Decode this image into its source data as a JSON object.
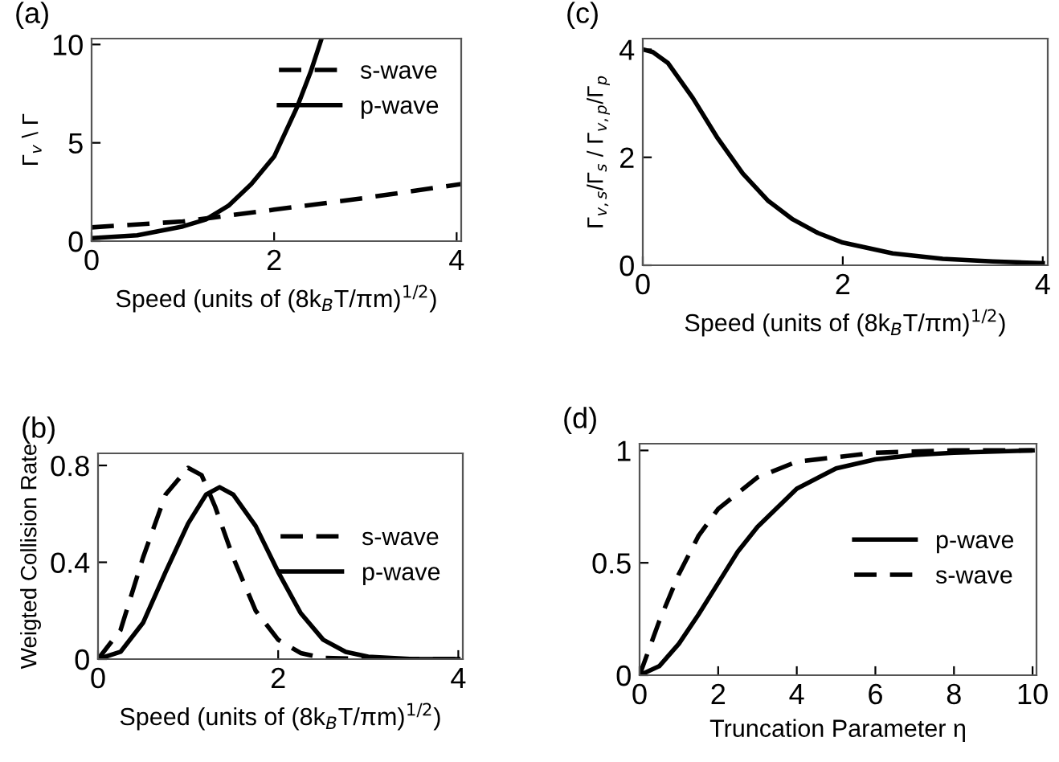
{
  "chart_data": [
    {
      "type": "line",
      "title": "(a)",
      "xlabel": "Speed (units of (8k$_{B}$T/πm)$^{1/2}$)",
      "ylabel": "Γ$_{v}$ \\ Γ",
      "xlim": [
        0,
        4.05
      ],
      "ylim": [
        0,
        10.3
      ],
      "xticks": [
        0,
        2,
        4
      ],
      "yticks": [
        0,
        5,
        10
      ],
      "grid": false,
      "legend": "top right",
      "series": [
        {
          "name": "s-wave",
          "color": "#000000",
          "line_style": "dashed",
          "x": [
            0,
            1,
            2,
            3,
            4.05
          ],
          "values": [
            0.7,
            1.0,
            1.6,
            2.2,
            2.9
          ]
        },
        {
          "name": "p-wave",
          "color": "#000000",
          "line_style": "solid",
          "x": [
            0,
            0.5,
            1,
            1.25,
            1.5,
            1.75,
            2,
            2.25,
            2.4,
            2.52
          ],
          "values": [
            0.15,
            0.3,
            0.75,
            1.1,
            1.8,
            2.9,
            4.3,
            6.8,
            8.6,
            10.3
          ]
        }
      ]
    },
    {
      "type": "line",
      "title": "(c)",
      "xlabel": "Speed (units of (8k$_{B}$T/πm)$^{1/2}$)",
      "ylabel": "Γ$_{v,s}$/Γ$_{s}$ / Γ$_{v,p}$/Γ$_{p}$",
      "xlim": [
        0,
        4.05
      ],
      "ylim": [
        0,
        4.2
      ],
      "xticks": [
        0,
        2,
        4
      ],
      "yticks": [
        0,
        2,
        4
      ],
      "grid": false,
      "legend": false,
      "series": [
        {
          "color": "#000000",
          "line_style": "solid",
          "x": [
            0,
            0.1,
            0.25,
            0.5,
            0.75,
            1,
            1.25,
            1.5,
            1.75,
            2,
            2.5,
            3,
            3.5,
            4
          ],
          "values": [
            4.0,
            3.95,
            3.75,
            3.1,
            2.35,
            1.7,
            1.2,
            0.85,
            0.6,
            0.42,
            0.22,
            0.12,
            0.07,
            0.04
          ]
        }
      ]
    },
    {
      "type": "line",
      "title": "(b)",
      "xlabel": "Speed (units of (8k$_{B}$T/πm)$^{1/2}$)",
      "ylabel": "Weigted Collision Rate",
      "xlim": [
        0,
        4.05
      ],
      "ylim": [
        0,
        0.85
      ],
      "xticks": [
        0,
        2,
        4
      ],
      "yticks": [
        0,
        0.4,
        0.8
      ],
      "grid": false,
      "legend": "right",
      "series": [
        {
          "name": "s-wave",
          "color": "#000000",
          "line_style": "dashed",
          "x": [
            0,
            0.25,
            0.5,
            0.75,
            1.0,
            1.15,
            1.3,
            1.5,
            1.75,
            2,
            2.25,
            2.5,
            3,
            4
          ],
          "values": [
            0,
            0.12,
            0.42,
            0.68,
            0.79,
            0.76,
            0.63,
            0.42,
            0.2,
            0.08,
            0.025,
            0.005,
            0,
            0
          ]
        },
        {
          "name": "p-wave",
          "color": "#000000",
          "line_style": "solid",
          "x": [
            0,
            0.25,
            0.5,
            0.75,
            1,
            1.2,
            1.35,
            1.5,
            1.75,
            2,
            2.25,
            2.5,
            2.75,
            3,
            3.5,
            4
          ],
          "values": [
            0,
            0.03,
            0.15,
            0.36,
            0.56,
            0.68,
            0.71,
            0.68,
            0.55,
            0.36,
            0.19,
            0.08,
            0.03,
            0.01,
            0,
            0
          ]
        }
      ]
    },
    {
      "type": "line",
      "title": "(d)",
      "xlabel": "Truncation Parameter η",
      "xlim": [
        0,
        10.1
      ],
      "ylim": [
        0,
        1.03
      ],
      "xticks": [
        0,
        2,
        4,
        6,
        8,
        10
      ],
      "yticks": [
        0,
        0.5,
        1
      ],
      "grid": false,
      "legend": "right",
      "series": [
        {
          "name": "p-wave",
          "color": "#000000",
          "line_style": "solid",
          "x": [
            0,
            0.5,
            1,
            1.5,
            2,
            2.5,
            3,
            4,
            5,
            6,
            7,
            8,
            10
          ],
          "values": [
            0,
            0.04,
            0.14,
            0.27,
            0.41,
            0.55,
            0.66,
            0.83,
            0.92,
            0.96,
            0.98,
            0.99,
            1.0
          ]
        },
        {
          "name": "s-wave",
          "color": "#000000",
          "line_style": "dashed",
          "x": [
            0,
            0.5,
            1,
            1.5,
            2,
            3,
            4,
            5,
            6,
            8,
            10
          ],
          "values": [
            0,
            0.24,
            0.45,
            0.62,
            0.74,
            0.88,
            0.95,
            0.97,
            0.99,
            1.0,
            1.0
          ]
        }
      ]
    }
  ]
}
